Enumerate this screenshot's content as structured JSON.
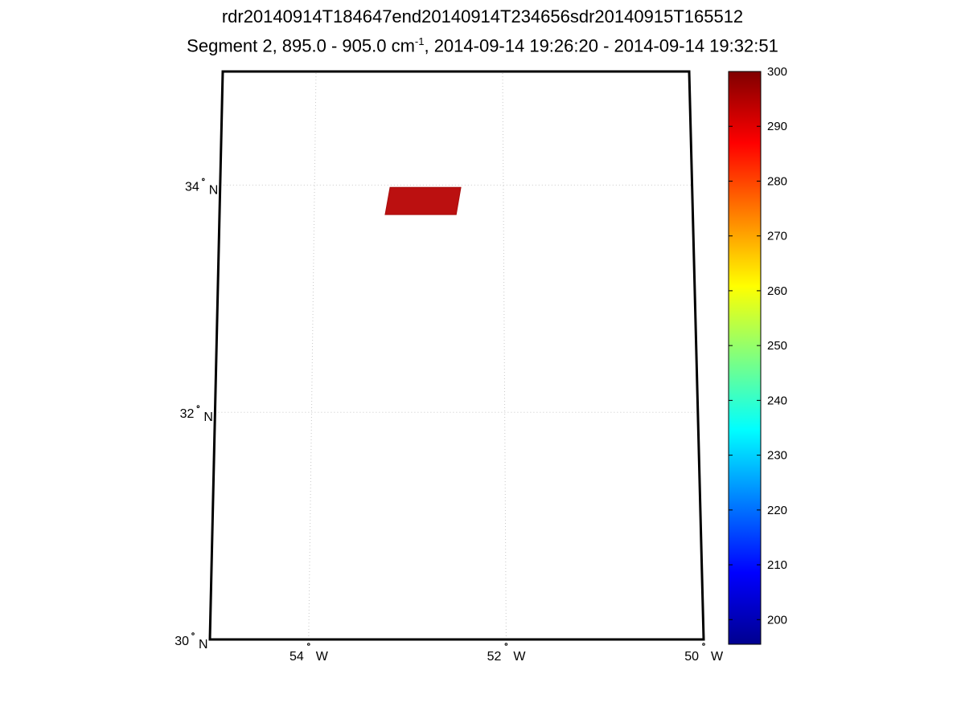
{
  "title": {
    "line1": "rdr20140914T184647end20140914T234656sdr20140915T165512",
    "line2_prefix": "Segment 2, 895.0 - 905.0 cm",
    "line2_sup": "-1",
    "line2_suffix": ", 2014-09-14 19:26:20 - 2014-09-14 19:32:51"
  },
  "map": {
    "lon_range": [
      -55,
      -50
    ],
    "lat_range": [
      30,
      35
    ],
    "grid": true,
    "lat_ticks": [
      {
        "value": 30,
        "label": "30",
        "hemi": "N"
      },
      {
        "value": 32,
        "label": "32",
        "hemi": "N"
      },
      {
        "value": 34,
        "label": "34",
        "hemi": "N"
      }
    ],
    "lon_ticks": [
      {
        "value": -54,
        "label": "54",
        "hemi": "W"
      },
      {
        "value": -52,
        "label": "52",
        "hemi": "W"
      },
      {
        "value": -50,
        "label": "50",
        "hemi": "W"
      }
    ],
    "swath": {
      "corners_lonlat": [
        [
          -53.2,
          33.98
        ],
        [
          -52.45,
          33.98
        ],
        [
          -52.5,
          33.74
        ],
        [
          -53.25,
          33.74
        ]
      ],
      "value_range": [
        288,
        298
      ],
      "dominant_value": 295,
      "color": "#bb1010"
    }
  },
  "colorbar": {
    "colormap": "jet",
    "min": 195.5,
    "max": 300,
    "ticks": [
      "300",
      "290",
      "280",
      "270",
      "260",
      "250",
      "240",
      "230",
      "220",
      "210",
      "200"
    ]
  }
}
